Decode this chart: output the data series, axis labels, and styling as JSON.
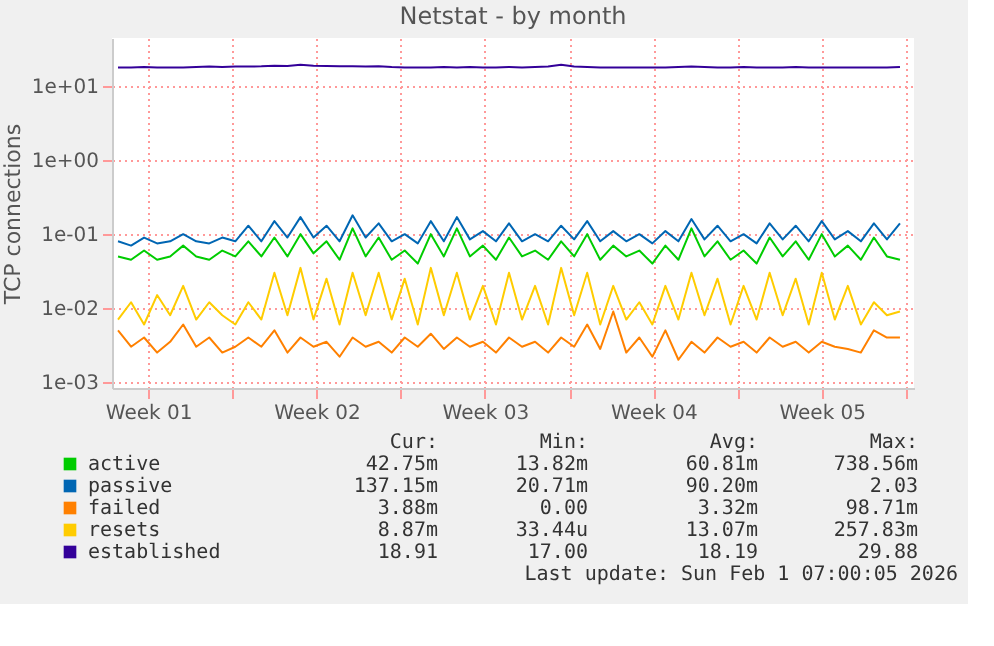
{
  "chart_data": {
    "type": "line",
    "title": "Netstat - by month",
    "ylabel": "TCP connections",
    "log": "y",
    "grid": true,
    "legend": "bottom",
    "xlim": [
      "2025-12-30T00:00",
      "2026-02-01T08:00"
    ],
    "ylim": [
      0.00083,
      45
    ],
    "xticks": [
      {
        "value": "2025-12-31T12:00",
        "label": "Week 01"
      },
      {
        "value": "2026-01-04T00:00",
        "label": null
      },
      {
        "value": "2026-01-07T12:00",
        "label": "Week 02"
      },
      {
        "value": "2026-01-11T00:00",
        "label": null
      },
      {
        "value": "2026-01-14T12:00",
        "label": "Week 03"
      },
      {
        "value": "2026-01-18T00:00",
        "label": null
      },
      {
        "value": "2026-01-21T12:00",
        "label": "Week 04"
      },
      {
        "value": "2026-01-25T00:00",
        "label": null
      },
      {
        "value": "2026-01-28T12:00",
        "label": "Week 05"
      },
      {
        "value": "2026-02-01T00:00",
        "label": null
      }
    ],
    "yticks": [
      {
        "value": 0.001,
        "label": "1e-03"
      },
      {
        "value": 0.01,
        "label": "1e-02"
      },
      {
        "value": 0.1,
        "label": "1e-01"
      },
      {
        "value": 1,
        "label": "1e+00"
      },
      {
        "value": 10,
        "label": "1e+01"
      }
    ],
    "x": [
      "2025-12-30T06:00",
      "2025-12-30T19:00",
      "2025-12-31T08:00",
      "2025-12-31T21:00",
      "2026-01-01T10:00",
      "2026-01-01T23:00",
      "2026-01-02T12:00",
      "2026-01-03T01:00",
      "2026-01-03T14:00",
      "2026-01-04T03:00",
      "2026-01-04T16:00",
      "2026-01-05T05:00",
      "2026-01-05T18:00",
      "2026-01-06T07:00",
      "2026-01-06T20:00",
      "2026-01-07T09:00",
      "2026-01-07T22:00",
      "2026-01-08T11:00",
      "2026-01-09T00:00",
      "2026-01-09T13:00",
      "2026-01-10T02:00",
      "2026-01-10T15:00",
      "2026-01-11T04:00",
      "2026-01-11T17:00",
      "2026-01-12T06:00",
      "2026-01-12T19:00",
      "2026-01-13T08:00",
      "2026-01-13T21:00",
      "2026-01-14T10:00",
      "2026-01-14T23:00",
      "2026-01-15T12:00",
      "2026-01-16T01:00",
      "2026-01-16T14:00",
      "2026-01-17T03:00",
      "2026-01-17T16:00",
      "2026-01-18T05:00",
      "2026-01-18T18:00",
      "2026-01-19T07:00",
      "2026-01-19T20:00",
      "2026-01-20T09:00",
      "2026-01-20T22:00",
      "2026-01-21T11:00",
      "2026-01-22T00:00",
      "2026-01-22T13:00",
      "2026-01-23T02:00",
      "2026-01-23T15:00",
      "2026-01-24T04:00",
      "2026-01-24T17:00",
      "2026-01-25T06:00",
      "2026-01-25T19:00",
      "2026-01-26T08:00",
      "2026-01-26T21:00",
      "2026-01-27T10:00",
      "2026-01-27T23:00",
      "2026-01-28T12:00",
      "2026-01-29T01:00",
      "2026-01-29T14:00",
      "2026-01-30T03:00",
      "2026-01-30T16:00",
      "2026-01-31T05:00",
      "2026-01-31T18:00"
    ],
    "series": [
      {
        "name": "active",
        "color": "#00cc00",
        "values": [
          0.05,
          0.045,
          0.06,
          0.045,
          0.05,
          0.07,
          0.05,
          0.045,
          0.06,
          0.05,
          0.08,
          0.05,
          0.09,
          0.05,
          0.1,
          0.055,
          0.08,
          0.045,
          0.12,
          0.05,
          0.09,
          0.045,
          0.06,
          0.04,
          0.1,
          0.05,
          0.12,
          0.05,
          0.07,
          0.045,
          0.09,
          0.05,
          0.06,
          0.045,
          0.08,
          0.05,
          0.1,
          0.045,
          0.07,
          0.05,
          0.06,
          0.04,
          0.07,
          0.045,
          0.12,
          0.05,
          0.08,
          0.045,
          0.06,
          0.04,
          0.09,
          0.05,
          0.08,
          0.045,
          0.1,
          0.05,
          0.07,
          0.045,
          0.09,
          0.05,
          0.045
        ]
      },
      {
        "name": "passive",
        "color": "#0066b3",
        "values": [
          0.08,
          0.07,
          0.09,
          0.075,
          0.08,
          0.1,
          0.08,
          0.075,
          0.09,
          0.08,
          0.13,
          0.08,
          0.15,
          0.09,
          0.17,
          0.09,
          0.13,
          0.08,
          0.18,
          0.09,
          0.14,
          0.08,
          0.1,
          0.075,
          0.15,
          0.08,
          0.17,
          0.085,
          0.11,
          0.08,
          0.14,
          0.08,
          0.1,
          0.08,
          0.13,
          0.085,
          0.15,
          0.08,
          0.11,
          0.08,
          0.1,
          0.075,
          0.11,
          0.08,
          0.16,
          0.085,
          0.13,
          0.08,
          0.1,
          0.075,
          0.14,
          0.085,
          0.13,
          0.08,
          0.15,
          0.085,
          0.11,
          0.08,
          0.14,
          0.085,
          0.14
        ]
      },
      {
        "name": "failed",
        "color": "#ff8000",
        "values": [
          0.005,
          0.003,
          0.004,
          0.0025,
          0.0035,
          0.006,
          0.003,
          0.004,
          0.0025,
          0.003,
          0.004,
          0.003,
          0.005,
          0.0025,
          0.004,
          0.003,
          0.0035,
          0.0022,
          0.004,
          0.003,
          0.0035,
          0.0025,
          0.004,
          0.003,
          0.0045,
          0.0028,
          0.004,
          0.003,
          0.0035,
          0.0025,
          0.004,
          0.003,
          0.0035,
          0.0025,
          0.004,
          0.003,
          0.006,
          0.0028,
          0.009,
          0.0025,
          0.004,
          0.0022,
          0.005,
          0.002,
          0.0035,
          0.0025,
          0.004,
          0.003,
          0.0035,
          0.0025,
          0.004,
          0.003,
          0.0035,
          0.0025,
          0.0035,
          0.003,
          0.0028,
          0.0025,
          0.005,
          0.004,
          0.004
        ]
      },
      {
        "name": "resets",
        "color": "#ffcc00",
        "values": [
          0.007,
          0.012,
          0.006,
          0.015,
          0.008,
          0.02,
          0.007,
          0.012,
          0.008,
          0.006,
          0.012,
          0.007,
          0.03,
          0.008,
          0.035,
          0.007,
          0.025,
          0.006,
          0.03,
          0.008,
          0.03,
          0.007,
          0.025,
          0.006,
          0.035,
          0.008,
          0.03,
          0.007,
          0.02,
          0.006,
          0.03,
          0.007,
          0.02,
          0.006,
          0.035,
          0.008,
          0.03,
          0.006,
          0.02,
          0.007,
          0.012,
          0.006,
          0.02,
          0.007,
          0.03,
          0.008,
          0.025,
          0.006,
          0.02,
          0.007,
          0.03,
          0.008,
          0.025,
          0.006,
          0.03,
          0.007,
          0.02,
          0.006,
          0.012,
          0.008,
          0.009
        ]
      },
      {
        "name": "established",
        "color": "#330099",
        "values": [
          18,
          18,
          18.2,
          18,
          18,
          18,
          18.3,
          18.5,
          18.3,
          18.5,
          18.5,
          18.6,
          19,
          18.8,
          19.5,
          19,
          18.8,
          18.6,
          18.6,
          18.5,
          18.6,
          18.2,
          18,
          18,
          18,
          18.2,
          18,
          18.3,
          18,
          18,
          18.2,
          18,
          18.3,
          18.5,
          19.5,
          18.5,
          18.2,
          18,
          18,
          18,
          18,
          18,
          18,
          18.2,
          18.5,
          18.3,
          18,
          18,
          18.2,
          18,
          18,
          18,
          18.2,
          18,
          18,
          18,
          18,
          18,
          18,
          18,
          18.2
        ]
      }
    ],
    "annotations": [
      "Cur:",
      "Min:",
      "Avg:",
      "Max:",
      "42.75m",
      "13.82m",
      "60.81m",
      "738.56m",
      "137.15m",
      "20.71m",
      "90.20m",
      "2.03",
      "3.88m",
      "0.00",
      "3.32m",
      "98.71m",
      "8.87m",
      "33.44u",
      "13.07m",
      "257.83m",
      "18.91",
      "17.00",
      "18.19",
      "29.88",
      "Last update: Sun Feb  1 07:00:05 2026"
    ]
  }
}
